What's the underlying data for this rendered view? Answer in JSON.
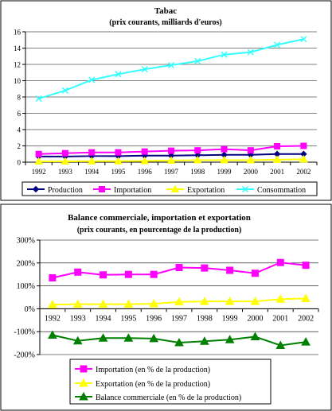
{
  "colors": {
    "production": "#000080",
    "importation": "#ff00ff",
    "exportation": "#ffff00",
    "consommation": "#33ffff",
    "balance": "#008000",
    "frame": "#000000",
    "grid": "#000000"
  },
  "chart_data": [
    {
      "type": "line",
      "title": "Tabac",
      "subtitle": "(prix courants, milliards d'euros)",
      "categories": [
        "1992",
        "1993",
        "1994",
        "1995",
        "1996",
        "1997",
        "1998",
        "1999",
        "2000",
        "2001",
        "2002"
      ],
      "yticks": [
        "0",
        "2",
        "4",
        "6",
        "8",
        "10",
        "12",
        "14",
        "16"
      ],
      "ylim": [
        0,
        16
      ],
      "legend_position": "bottom",
      "series": [
        {
          "name": "Production",
          "marker": "diamond",
          "color": "#000080",
          "values": [
            0.7,
            0.7,
            0.75,
            0.75,
            0.8,
            0.8,
            0.85,
            0.9,
            0.9,
            1.0,
            1.0
          ]
        },
        {
          "name": "Importation",
          "marker": "square",
          "color": "#ff00ff",
          "values": [
            1.0,
            1.1,
            1.2,
            1.2,
            1.3,
            1.4,
            1.45,
            1.6,
            1.45,
            1.95,
            2.0
          ]
        },
        {
          "name": "Exportation",
          "marker": "triangle",
          "color": "#ffff00",
          "values": [
            0.1,
            0.1,
            0.12,
            0.12,
            0.15,
            0.2,
            0.25,
            0.25,
            0.25,
            0.3,
            0.35
          ]
        },
        {
          "name": "Consommation",
          "marker": "x",
          "color": "#33ffff",
          "values": [
            7.8,
            8.8,
            10.1,
            10.8,
            11.4,
            11.9,
            12.4,
            13.2,
            13.5,
            14.4,
            15.1
          ]
        }
      ]
    },
    {
      "type": "line",
      "title": "Balance commerciale, importation et exportation",
      "subtitle": "(prix courants, en pourcentage de la production)",
      "categories": [
        "1992",
        "1993",
        "1994",
        "1995",
        "1996",
        "1997",
        "1998",
        "1999",
        "2000",
        "2001",
        "2002"
      ],
      "yticks": [
        "-200%",
        "-100%",
        "0%",
        "100%",
        "200%",
        "300%"
      ],
      "ylim": [
        -200,
        300
      ],
      "legend_position": "bottom",
      "series": [
        {
          "name": "Importation (en % de la production)",
          "marker": "square",
          "color": "#ff00ff",
          "values": [
            135,
            160,
            148,
            150,
            150,
            180,
            178,
            168,
            155,
            202,
            190
          ]
        },
        {
          "name": "Exportation (en % de la production)",
          "marker": "triangle",
          "color": "#ffff00",
          "values": [
            18,
            20,
            20,
            20,
            22,
            30,
            32,
            32,
            32,
            42,
            45
          ]
        },
        {
          "name": "Balance commerciale (en % de la production)",
          "marker": "triangle",
          "color": "#008000",
          "values": [
            -115,
            -140,
            -128,
            -128,
            -130,
            -148,
            -142,
            -135,
            -122,
            -160,
            -145
          ]
        }
      ]
    }
  ]
}
